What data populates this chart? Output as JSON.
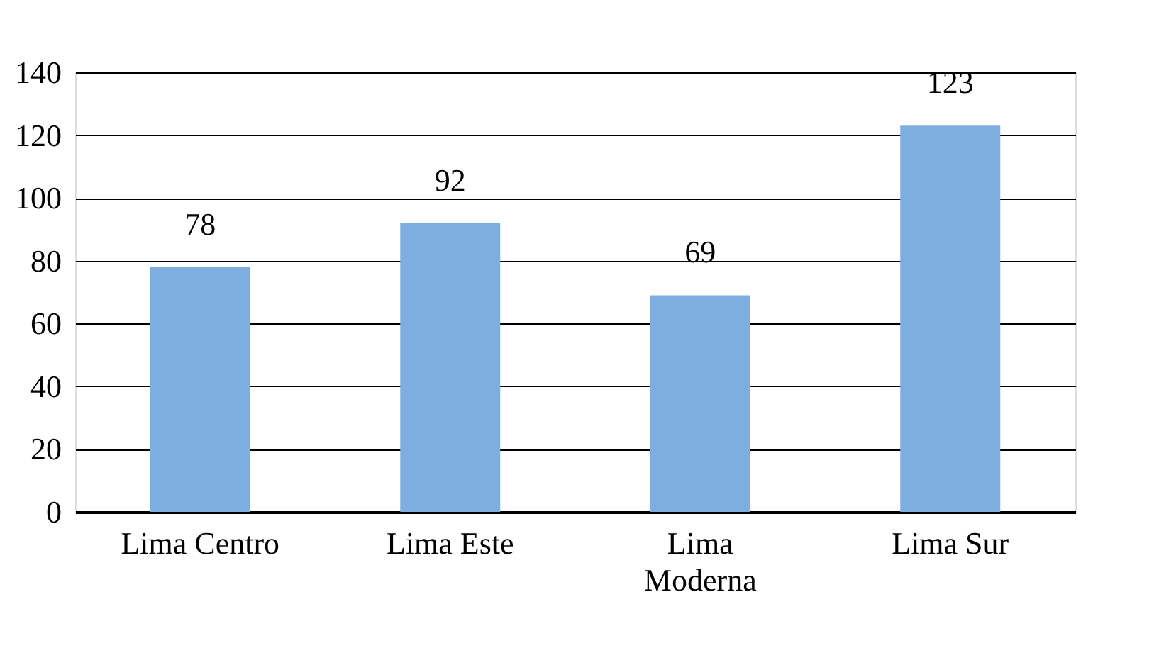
{
  "chart_data": {
    "type": "bar",
    "categories": [
      "Lima Centro",
      "Lima Este",
      "Lima Moderna",
      "Lima Sur"
    ],
    "values": [
      78,
      92,
      69,
      123
    ],
    "color": "#7eaee0",
    "ylim": [
      0,
      140
    ],
    "yticks": [
      0,
      20,
      40,
      60,
      80,
      100,
      120,
      140
    ],
    "grid": "y",
    "data_labels": true
  }
}
